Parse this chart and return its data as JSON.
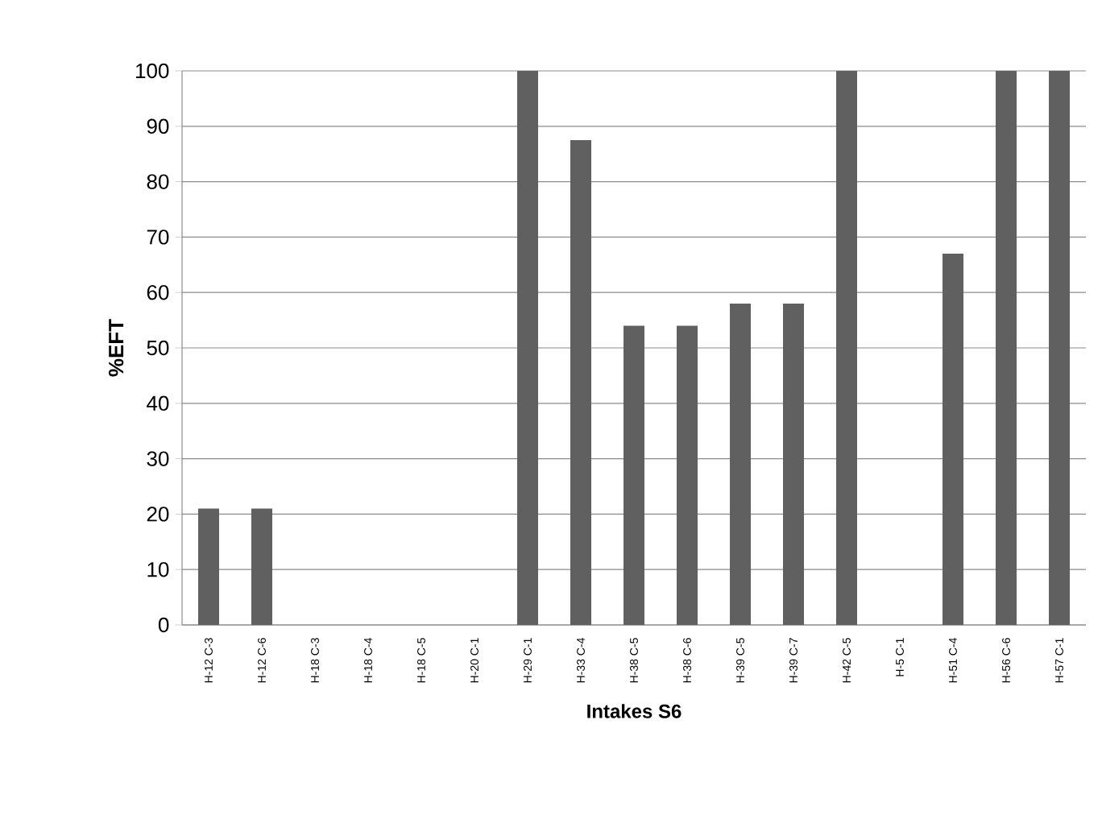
{
  "chart_data": {
    "type": "bar",
    "xlabel": "Intakes S6",
    "ylabel": "%EFT",
    "categories": [
      "H-12 C-3",
      "H-12 C-6",
      "H-18 C-3",
      "H-18 C-4",
      "H-18 C-5",
      "H-20 C-1",
      "H-29 C-1",
      "H-33 C-4",
      "H-38 C-5",
      "H-38 C-6",
      "H-39 C-5",
      "H-39 C-7",
      "H-42 C-5",
      "H-5 C-1",
      "H-51 C-4",
      "H-56 C-6",
      "H-57 C-1"
    ],
    "values": [
      21,
      21,
      0,
      0,
      0,
      0,
      100,
      87.5,
      54,
      54,
      58,
      58,
      100,
      0,
      67,
      100,
      100
    ],
    "color": "#606060",
    "ylim": [
      0,
      100
    ],
    "yticks": [
      0,
      10,
      20,
      30,
      40,
      50,
      60,
      70,
      80,
      90,
      100
    ],
    "grid": "y"
  }
}
